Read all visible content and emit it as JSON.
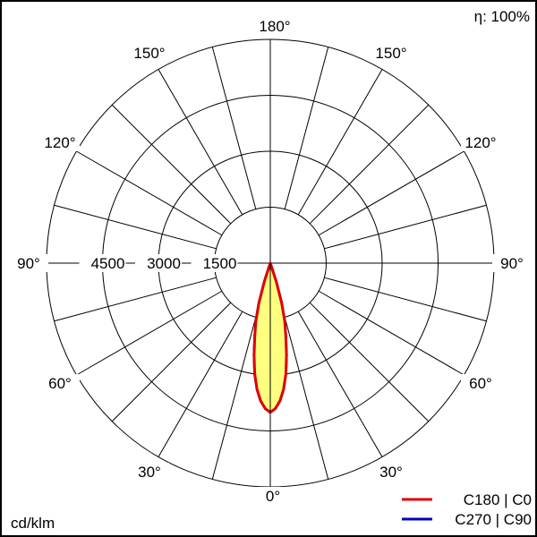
{
  "chart_data": {
    "type": "polar",
    "efficiency_label": "η: 100%",
    "unit_label": "cd/klm",
    "radial_ticks": [
      1500,
      3000,
      4500,
      6000
    ],
    "radial_tick_labels": [
      "1500",
      "3000",
      "4500"
    ],
    "rmax": 6000,
    "angle_labels": [
      "180°",
      "150°",
      "120°",
      "90°",
      "60°",
      "30°",
      "0°"
    ],
    "grid": true,
    "fill_color": "#ffff80",
    "legend_position": "bottom-right",
    "series": [
      {
        "name": "C180 | C0",
        "color": "#e00000",
        "angles": [
          0,
          2,
          4,
          6,
          8,
          10,
          12,
          14,
          16,
          18,
          20
        ],
        "values": [
          4000,
          3900,
          3700,
          3400,
          3000,
          2500,
          2000,
          1600,
          1100,
          500,
          0
        ]
      },
      {
        "name": "C270 | C90",
        "color": "#0000c0",
        "angles": [
          0,
          2,
          4,
          6,
          8,
          10,
          12,
          14,
          16,
          18,
          20
        ],
        "values": [
          4000,
          3900,
          3700,
          3400,
          3000,
          2500,
          2000,
          1600,
          1100,
          500,
          0
        ]
      }
    ]
  }
}
